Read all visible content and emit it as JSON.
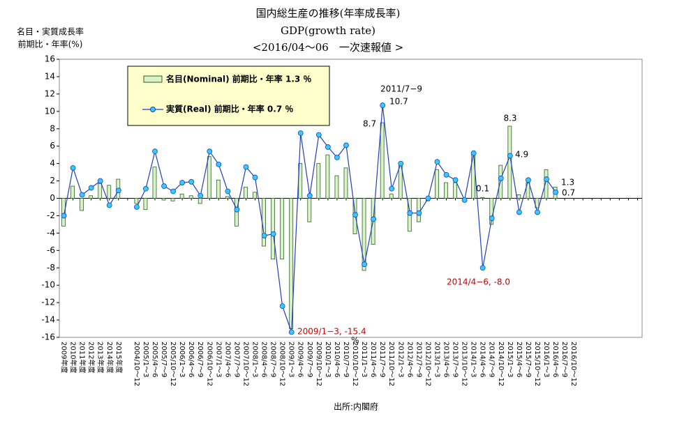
{
  "chart_data": {
    "type": "bar_line",
    "title": "国内総生産の推移(年率成長率)",
    "subtitle": "GDP(growth rate)",
    "subtitle2": "<2016/04～06　一次速報値 >",
    "y_label_1": "名目・実質成長率",
    "y_label_2": "前期比・年率(%)",
    "source": "出所:内閣府",
    "categories": [
      "2009年度",
      "2010年度",
      "2011年度",
      "2012年度",
      "2013年度",
      "2014年度",
      "2015年度",
      null,
      "2004/10～12",
      "2005/1～3",
      "2005/4～6",
      "2005/7～9",
      "2005/10～12",
      "2006/1～3",
      "2006/4～6",
      "2006/7～9",
      "2006/10～12",
      "2007/1～3",
      "2007/4～6",
      "2007/7～9",
      "2007/10～12",
      "2008/1～3",
      "2008/4～6",
      "2008/7～9",
      "2008/10～12",
      "2009/1～3",
      "2009/4～6",
      "2009/7～9",
      "2009/10～12",
      "2010/1～3",
      "2010/4～6",
      "2010/7～9",
      "2010/10～12",
      "2011/1～3",
      "2011/4～6",
      "2011/7～9",
      "2011/10～12",
      "2012/1～3",
      "2012/4～6",
      "2012/7～9",
      "2012/10～12",
      "2013/1～3",
      "2013/4～6",
      "2013/7～9",
      "2013/10～12",
      "2014/1～3",
      "2014/4～6",
      "2014/7～9",
      "2014/10～12",
      "2015/1～3",
      "2015/4～6",
      "2015/7～9",
      "2015/10～12",
      "2016/1～3",
      "2016/4～6",
      "2016/7～9",
      "2016/10～12",
      null,
      null,
      null,
      null,
      null,
      null,
      null
    ],
    "series": [
      {
        "name": "名目(Nominal) 前期比・年率 1.3 ％",
        "kind": "bar",
        "color": "#d9f2c6",
        "edge": "#2f5f2f",
        "values": [
          -3.2,
          1.4,
          -1.4,
          0.3,
          1.7,
          1.5,
          2.2,
          null,
          -0.6,
          -1.3,
          3.6,
          -0.2,
          -0.3,
          0.5,
          0.3,
          -0.6,
          4.8,
          2.1,
          0.2,
          -3.2,
          1.3,
          0.7,
          -5.5,
          -7.0,
          -7.0,
          -15.0,
          4.0,
          -2.7,
          4.0,
          5.0,
          2.6,
          3.5,
          -4.1,
          -8.3,
          -5.3,
          8.7,
          0.5,
          3.8,
          -3.8,
          -2.7,
          -0.3,
          3.3,
          1.8,
          1.8,
          0.0,
          5.1,
          0.1,
          -3.0,
          3.8,
          8.3,
          0.4,
          1.8,
          -1.1,
          3.3,
          1.3,
          null,
          null,
          null,
          null,
          null,
          null,
          null,
          null,
          null
        ]
      },
      {
        "name": "実質(Real) 前期比・年率 0.7 ％",
        "kind": "line",
        "color": "#1f3fbf",
        "marker": "#33ccff",
        "values": [
          -2.0,
          3.5,
          0.4,
          1.2,
          2.0,
          -0.8,
          0.9,
          null,
          -1.0,
          1.1,
          5.4,
          1.4,
          0.8,
          1.8,
          1.9,
          0.3,
          5.4,
          3.9,
          0.8,
          -1.3,
          3.6,
          2.4,
          -4.3,
          -4.1,
          -12.4,
          -15.4,
          7.5,
          0.3,
          7.3,
          5.9,
          4.7,
          6.1,
          -1.9,
          -7.6,
          -2.4,
          10.7,
          1.1,
          4.0,
          -1.7,
          -1.7,
          0.0,
          4.2,
          2.7,
          2.1,
          -0.2,
          5.2,
          -8.0,
          -2.3,
          2.3,
          4.9,
          -1.6,
          2.1,
          -1.6,
          2.2,
          0.7,
          null,
          null,
          null,
          null,
          null,
          null,
          null,
          null,
          null
        ]
      }
    ],
    "annotations": [
      "2011/7−9",
      "10.7",
      "8.7",
      "8.3",
      "4.9",
      "0.1",
      "1.3",
      "0.7",
      "2014/4−6, -8.0",
      "2009/1−3, -15.4",
      "%"
    ],
    "ylim": [
      -16,
      16
    ],
    "yticks": [
      -16,
      -14,
      -12,
      -10,
      -8,
      -6,
      -4,
      -2,
      0,
      2,
      4,
      6,
      8,
      10,
      12,
      14,
      16
    ],
    "grid": false
  }
}
